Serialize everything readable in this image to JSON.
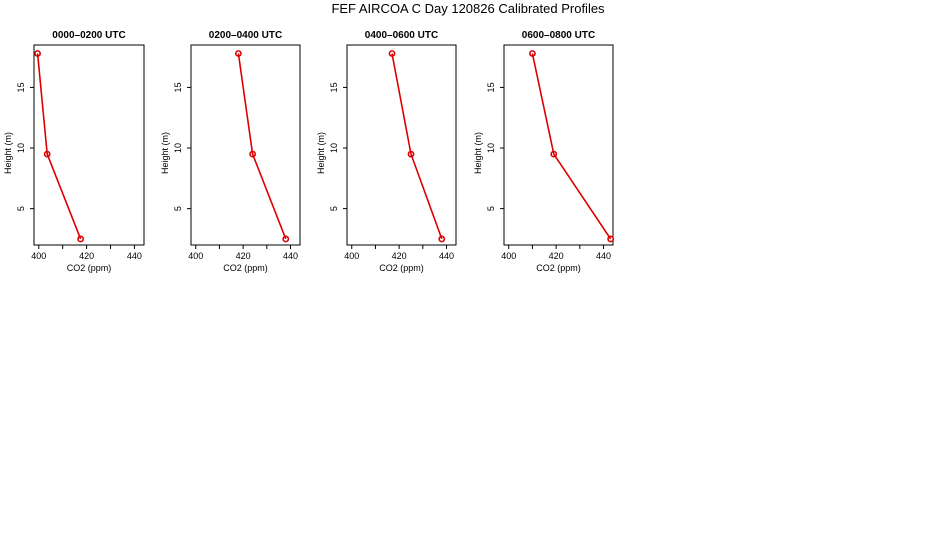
{
  "title": "FEF AIRCOA C  Day 120826  Calibrated Profiles",
  "colors": {
    "series": "#dd0000",
    "axis": "#000000",
    "background": "#ffffff"
  },
  "chart_data": [
    {
      "type": "line",
      "title": "0000–0200 UTC",
      "xlabel": "CO2 (ppm)",
      "ylabel": "Height (m)",
      "xlim": [
        398,
        444
      ],
      "ylim": [
        2,
        18.5
      ],
      "xticks": [
        400,
        420,
        440
      ],
      "yticks": [
        5,
        10,
        15
      ],
      "points": [
        {
          "x": 399.5,
          "y": 17.8
        },
        {
          "x": 403.5,
          "y": 9.5
        },
        {
          "x": 417.5,
          "y": 2.5
        }
      ]
    },
    {
      "type": "line",
      "title": "0200–0400 UTC",
      "xlabel": "CO2 (ppm)",
      "ylabel": "Height (m)",
      "xlim": [
        398,
        444
      ],
      "ylim": [
        2,
        18.5
      ],
      "xticks": [
        400,
        420,
        440
      ],
      "yticks": [
        5,
        10,
        15
      ],
      "points": [
        {
          "x": 418.0,
          "y": 17.8
        },
        {
          "x": 424.0,
          "y": 9.5
        },
        {
          "x": 438.0,
          "y": 2.5
        }
      ]
    },
    {
      "type": "line",
      "title": "0400–0600 UTC",
      "xlabel": "CO2 (ppm)",
      "ylabel": "Height (m)",
      "xlim": [
        398,
        444
      ],
      "ylim": [
        2,
        18.5
      ],
      "xticks": [
        400,
        420,
        440
      ],
      "yticks": [
        5,
        10,
        15
      ],
      "points": [
        {
          "x": 417.0,
          "y": 17.8
        },
        {
          "x": 425.0,
          "y": 9.5
        },
        {
          "x": 438.0,
          "y": 2.5
        }
      ]
    },
    {
      "type": "line",
      "title": "0600–0800 UTC",
      "xlabel": "CO2 (ppm)",
      "ylabel": "Height (m)",
      "xlim": [
        398,
        444
      ],
      "ylim": [
        2,
        18.5
      ],
      "xticks": [
        400,
        420,
        440
      ],
      "yticks": [
        5,
        10,
        15
      ],
      "points": [
        {
          "x": 410.0,
          "y": 17.8
        },
        {
          "x": 419.0,
          "y": 9.5
        },
        {
          "x": 443.0,
          "y": 2.5
        }
      ]
    }
  ]
}
